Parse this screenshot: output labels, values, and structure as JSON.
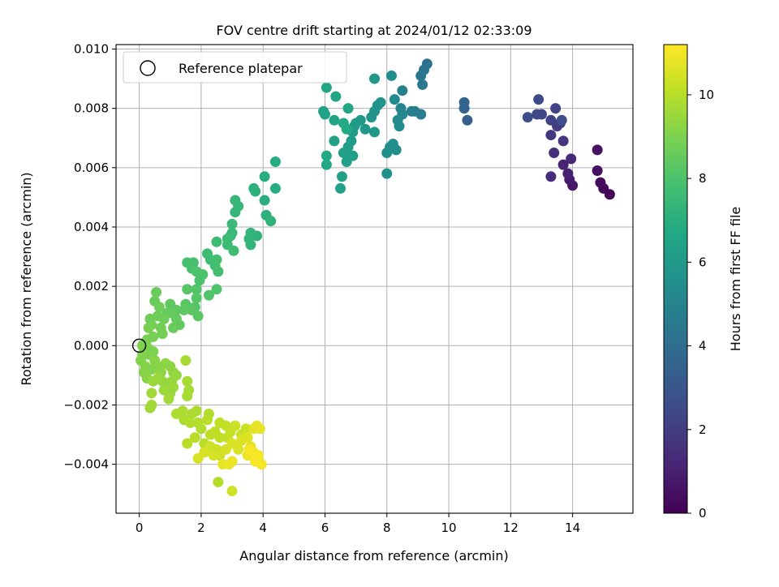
{
  "chart_data": {
    "type": "scatter",
    "title": "FOV centre drift starting at 2024/01/12 02:33:09",
    "xlabel": "Angular distance from reference (arcmin)",
    "ylabel": "Rotation from reference (arcmin)",
    "xlim": [
      -0.75,
      15.95
    ],
    "ylim": [
      -0.00565,
      0.01015
    ],
    "xticks": [
      0,
      2,
      4,
      6,
      8,
      10,
      12,
      14
    ],
    "xtick_labels": [
      "0",
      "2",
      "4",
      "6",
      "8",
      "10",
      "12",
      "14"
    ],
    "yticks": [
      -0.004,
      -0.002,
      0.0,
      0.002,
      0.004,
      0.006,
      0.008,
      0.01
    ],
    "ytick_labels": [
      "−0.004",
      "−0.002",
      "0.000",
      "0.002",
      "0.004",
      "0.006",
      "0.008",
      "0.010"
    ],
    "grid": true,
    "legend": {
      "position": "top-left",
      "entries": [
        "Reference platepar"
      ]
    },
    "reference_point": {
      "x": 0,
      "y": 0,
      "label": "Reference platepar"
    },
    "colorbar": {
      "label": "Hours from first FF file",
      "range": [
        0,
        11.2
      ],
      "ticks": [
        0,
        2,
        4,
        6,
        8,
        10
      ],
      "tick_labels": [
        "0",
        "2",
        "4",
        "6",
        "8",
        "10"
      ],
      "colormap": "viridis"
    },
    "points": [
      [
        15.2,
        0.0051,
        0.1
      ],
      [
        15.0,
        0.0053,
        0.2
      ],
      [
        14.9,
        0.0055,
        0.3
      ],
      [
        14.8,
        0.0059,
        0.4
      ],
      [
        14.8,
        0.0066,
        0.5
      ],
      [
        14.0,
        0.0054,
        0.7
      ],
      [
        13.9,
        0.0056,
        0.8
      ],
      [
        13.85,
        0.0058,
        1.0
      ],
      [
        13.7,
        0.0061,
        1.1
      ],
      [
        13.95,
        0.0063,
        1.3
      ],
      [
        13.3,
        0.0057,
        1.4
      ],
      [
        13.4,
        0.0065,
        1.5
      ],
      [
        13.7,
        0.0069,
        1.7
      ],
      [
        13.3,
        0.0071,
        1.8
      ],
      [
        13.6,
        0.0075,
        1.9
      ],
      [
        13.5,
        0.0074,
        2.0
      ],
      [
        13.3,
        0.0076,
        2.1
      ],
      [
        13.45,
        0.008,
        2.2
      ],
      [
        13.0,
        0.0078,
        2.3
      ],
      [
        12.85,
        0.0078,
        2.4
      ],
      [
        12.9,
        0.0083,
        2.5
      ],
      [
        12.55,
        0.0077,
        2.6
      ],
      [
        13.65,
        0.0076,
        2.7
      ],
      [
        10.6,
        0.0076,
        3.4
      ],
      [
        10.5,
        0.008,
        3.5
      ],
      [
        10.5,
        0.0082,
        3.6
      ],
      [
        9.3,
        0.0095,
        4.2
      ],
      [
        9.2,
        0.0093,
        4.3
      ],
      [
        9.1,
        0.0091,
        4.4
      ],
      [
        9.15,
        0.0088,
        4.5
      ],
      [
        9.1,
        0.0078,
        4.6
      ],
      [
        8.9,
        0.0079,
        4.7
      ],
      [
        8.8,
        0.0079,
        4.8
      ],
      [
        8.5,
        0.0086,
        4.9
      ],
      [
        8.45,
        0.008,
        5.0
      ],
      [
        8.5,
        0.0078,
        5.1
      ],
      [
        8.35,
        0.0076,
        5.2
      ],
      [
        8.4,
        0.0074,
        5.3
      ],
      [
        8.25,
        0.0083,
        5.3
      ],
      [
        8.15,
        0.0091,
        5.4
      ],
      [
        8.3,
        0.0066,
        5.4
      ],
      [
        8.2,
        0.0068,
        5.5
      ],
      [
        8.1,
        0.0067,
        5.5
      ],
      [
        8.0,
        0.0065,
        5.6
      ],
      [
        8.0,
        0.0058,
        5.6
      ],
      [
        7.8,
        0.0082,
        5.7
      ],
      [
        7.7,
        0.0081,
        5.7
      ],
      [
        7.5,
        0.0077,
        5.8
      ],
      [
        7.6,
        0.0079,
        5.8
      ],
      [
        7.6,
        0.009,
        5.9
      ],
      [
        7.6,
        0.0072,
        5.9
      ],
      [
        7.3,
        0.0073,
        6.0
      ],
      [
        7.15,
        0.0076,
        6.0
      ],
      [
        7.0,
        0.0075,
        6.1
      ],
      [
        6.95,
        0.0074,
        6.1
      ],
      [
        6.9,
        0.0072,
        6.2
      ],
      [
        6.85,
        0.0069,
        6.2
      ],
      [
        6.75,
        0.0067,
        6.2
      ],
      [
        6.9,
        0.0064,
        6.3
      ],
      [
        6.7,
        0.0062,
        6.3
      ],
      [
        6.6,
        0.0065,
        6.3
      ],
      [
        6.55,
        0.0057,
        6.4
      ],
      [
        6.5,
        0.0053,
        6.4
      ],
      [
        6.3,
        0.0069,
        6.4
      ],
      [
        6.3,
        0.0076,
        6.5
      ],
      [
        6.0,
        0.0078,
        6.5
      ],
      [
        5.95,
        0.0079,
        6.5
      ],
      [
        6.75,
        0.008,
        6.6
      ],
      [
        6.35,
        0.0084,
        6.6
      ],
      [
        6.05,
        0.0087,
        6.6
      ],
      [
        6.05,
        0.0064,
        6.7
      ],
      [
        6.05,
        0.0061,
        6.7
      ],
      [
        6.6,
        0.0075,
        6.7
      ],
      [
        6.7,
        0.0073,
        6.8
      ],
      [
        4.4,
        0.0062,
        6.9
      ],
      [
        4.4,
        0.0053,
        6.9
      ],
      [
        4.05,
        0.0057,
        7.0
      ],
      [
        4.05,
        0.0049,
        7.0
      ],
      [
        3.7,
        0.0053,
        7.1
      ],
      [
        3.75,
        0.0052,
        7.1
      ],
      [
        4.1,
        0.0044,
        7.1
      ],
      [
        4.25,
        0.0042,
        7.2
      ],
      [
        3.8,
        0.0037,
        7.2
      ],
      [
        3.6,
        0.0038,
        7.3
      ],
      [
        3.55,
        0.0036,
        7.3
      ],
      [
        3.6,
        0.0034,
        7.3
      ],
      [
        3.1,
        0.0049,
        7.4
      ],
      [
        3.2,
        0.0047,
        7.4
      ],
      [
        3.1,
        0.0045,
        7.4
      ],
      [
        3.0,
        0.0041,
        7.5
      ],
      [
        3.0,
        0.0038,
        7.5
      ],
      [
        2.95,
        0.0037,
        7.5
      ],
      [
        2.85,
        0.0036,
        7.6
      ],
      [
        2.85,
        0.0034,
        7.6
      ],
      [
        2.5,
        0.0035,
        7.6
      ],
      [
        3.05,
        0.0032,
        7.7
      ],
      [
        2.2,
        0.0031,
        7.7
      ],
      [
        2.3,
        0.0029,
        7.7
      ],
      [
        2.5,
        0.0029,
        7.8
      ],
      [
        2.45,
        0.0027,
        7.8
      ],
      [
        2.55,
        0.0025,
        7.8
      ],
      [
        1.75,
        0.0028,
        7.9
      ],
      [
        1.55,
        0.0028,
        7.9
      ],
      [
        1.7,
        0.0026,
        7.9
      ],
      [
        1.85,
        0.0025,
        8.0
      ],
      [
        2.05,
        0.0024,
        8.0
      ],
      [
        1.95,
        0.0022,
        8.0
      ],
      [
        2.5,
        0.0019,
        8.1
      ],
      [
        2.25,
        0.0017,
        8.1
      ],
      [
        1.85,
        0.0019,
        8.1
      ],
      [
        1.55,
        0.0019,
        8.2
      ],
      [
        1.85,
        0.0016,
        8.2
      ],
      [
        1.8,
        0.0013,
        8.2
      ],
      [
        1.5,
        0.0014,
        8.3
      ],
      [
        1.7,
        0.0012,
        8.3
      ],
      [
        1.9,
        0.001,
        8.3
      ],
      [
        1.45,
        0.0012,
        8.4
      ],
      [
        1.2,
        0.0012,
        8.4
      ],
      [
        1.0,
        0.0014,
        8.4
      ],
      [
        1.05,
        0.0011,
        8.5
      ],
      [
        0.9,
        0.0011,
        8.5
      ],
      [
        1.2,
        0.0009,
        8.5
      ],
      [
        1.3,
        0.0007,
        8.5
      ],
      [
        1.1,
        0.0006,
        8.6
      ],
      [
        0.55,
        0.0018,
        8.6
      ],
      [
        0.5,
        0.0015,
        8.6
      ],
      [
        0.65,
        0.0013,
        8.7
      ],
      [
        0.6,
        0.001,
        8.7
      ],
      [
        0.8,
        0.0009,
        8.7
      ],
      [
        0.35,
        0.0009,
        8.7
      ],
      [
        0.4,
        0.0007,
        8.8
      ],
      [
        0.7,
        0.0006,
        8.8
      ],
      [
        0.75,
        0.0004,
        8.8
      ],
      [
        0.45,
        0.0003,
        8.9
      ],
      [
        0.3,
        0.0006,
        8.9
      ],
      [
        0.25,
        0.0002,
        8.9
      ],
      [
        0.2,
        0.0001,
        8.9
      ],
      [
        0.1,
        0.0,
        9.0
      ],
      [
        0.3,
        -0.0001,
        9.0
      ],
      [
        0.45,
        -0.0002,
        9.0
      ],
      [
        0.3,
        -0.0003,
        9.0
      ],
      [
        0.1,
        -0.0003,
        9.1
      ],
      [
        0.05,
        -0.0005,
        9.1
      ],
      [
        0.2,
        -0.0007,
        9.1
      ],
      [
        0.4,
        -0.0008,
        9.1
      ],
      [
        0.15,
        -0.0009,
        9.2
      ],
      [
        0.25,
        -0.0011,
        9.2
      ],
      [
        0.5,
        -0.0005,
        9.2
      ],
      [
        0.6,
        -0.0007,
        9.2
      ],
      [
        0.7,
        -0.0009,
        9.3
      ],
      [
        0.85,
        -0.0006,
        9.3
      ],
      [
        1.0,
        -0.0007,
        9.3
      ],
      [
        1.1,
        -0.0009,
        9.3
      ],
      [
        1.2,
        -0.001,
        9.4
      ],
      [
        1.05,
        -0.0012,
        9.4
      ],
      [
        0.9,
        -0.0013,
        9.4
      ],
      [
        0.75,
        -0.0012,
        9.4
      ],
      [
        0.6,
        -0.0011,
        9.5
      ],
      [
        0.45,
        -0.0012,
        9.5
      ],
      [
        0.8,
        -0.0015,
        9.5
      ],
      [
        1.0,
        -0.0016,
        9.5
      ],
      [
        1.1,
        -0.0014,
        9.5
      ],
      [
        0.95,
        -0.0018,
        9.6
      ],
      [
        0.4,
        -0.0016,
        9.6
      ],
      [
        0.35,
        -0.0021,
        9.6
      ],
      [
        0.4,
        -0.002,
        9.6
      ],
      [
        1.5,
        -0.0005,
        9.7
      ],
      [
        1.55,
        -0.0012,
        9.7
      ],
      [
        1.6,
        -0.0015,
        9.7
      ],
      [
        1.55,
        -0.0017,
        9.7
      ],
      [
        1.2,
        -0.0023,
        9.8
      ],
      [
        1.4,
        -0.0022,
        9.8
      ],
      [
        1.45,
        -0.0025,
        9.8
      ],
      [
        1.7,
        -0.0023,
        9.8
      ],
      [
        1.85,
        -0.0022,
        9.8
      ],
      [
        1.65,
        -0.0026,
        9.9
      ],
      [
        1.9,
        -0.0026,
        9.9
      ],
      [
        2.25,
        -0.0023,
        9.9
      ],
      [
        2.0,
        -0.0028,
        9.9
      ],
      [
        2.2,
        -0.0025,
        10.0
      ],
      [
        1.8,
        -0.0031,
        10.0
      ],
      [
        1.55,
        -0.0033,
        10.0
      ],
      [
        2.1,
        -0.0033,
        10.0
      ],
      [
        2.3,
        -0.003,
        10.1
      ],
      [
        2.45,
        -0.0029,
        10.1
      ],
      [
        2.6,
        -0.0031,
        10.1
      ],
      [
        2.6,
        -0.0026,
        10.1
      ],
      [
        2.8,
        -0.0027,
        10.2
      ],
      [
        2.85,
        -0.0031,
        10.2
      ],
      [
        2.95,
        -0.0029,
        10.2
      ],
      [
        3.1,
        -0.0027,
        10.3
      ],
      [
        3.3,
        -0.003,
        10.3
      ],
      [
        3.45,
        -0.0028,
        10.3
      ],
      [
        2.3,
        -0.0034,
        10.4
      ],
      [
        2.5,
        -0.0035,
        10.4
      ],
      [
        2.6,
        -0.0037,
        10.4
      ],
      [
        2.4,
        -0.0037,
        10.5
      ],
      [
        2.1,
        -0.0036,
        10.5
      ],
      [
        1.9,
        -0.0038,
        10.5
      ],
      [
        2.8,
        -0.0035,
        10.5
      ],
      [
        3.0,
        -0.0033,
        10.6
      ],
      [
        3.2,
        -0.0035,
        10.6
      ],
      [
        3.3,
        -0.0032,
        10.6
      ],
      [
        3.5,
        -0.0031,
        10.7
      ],
      [
        3.6,
        -0.0034,
        10.7
      ],
      [
        3.7,
        -0.0028,
        10.7
      ],
      [
        3.8,
        -0.0027,
        10.8
      ],
      [
        3.9,
        -0.0028,
        10.8
      ],
      [
        2.7,
        -0.004,
        10.8
      ],
      [
        2.9,
        -0.004,
        10.9
      ],
      [
        3.0,
        -0.0039,
        10.9
      ],
      [
        3.5,
        -0.0037,
        10.9
      ],
      [
        3.7,
        -0.0036,
        11.0
      ],
      [
        3.85,
        -0.0037,
        11.0
      ],
      [
        3.95,
        -0.004,
        11.0
      ],
      [
        3.75,
        -0.0039,
        11.1
      ],
      [
        2.55,
        -0.0046,
        9.9
      ],
      [
        3.0,
        -0.0049,
        10.4
      ],
      [
        3.55,
        -0.0035,
        11.1
      ]
    ]
  }
}
